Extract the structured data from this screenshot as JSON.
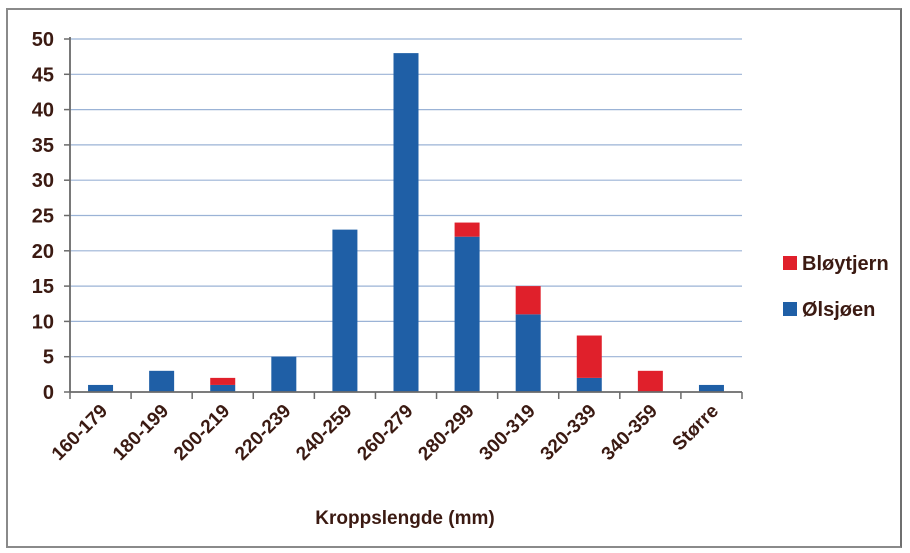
{
  "chart_data": {
    "type": "bar",
    "stacked": true,
    "title": "",
    "xlabel": "Kroppslengde (mm)",
    "ylabel": "",
    "ylim": [
      0,
      50
    ],
    "yticks": [
      0,
      5,
      10,
      15,
      20,
      25,
      30,
      35,
      40,
      45,
      50
    ],
    "grid": true,
    "legend_position": "right",
    "categories": [
      "160-179",
      "180-199",
      "200-219",
      "220-239",
      "240-259",
      "260-279",
      "280-299",
      "300-319",
      "320-339",
      "340-359",
      "Større"
    ],
    "series": [
      {
        "name": "Ølsjøen",
        "color": "#1f5fa6",
        "values": [
          1,
          3,
          1,
          5,
          23,
          48,
          22,
          11,
          2,
          0,
          1
        ]
      },
      {
        "name": "Bløytjern",
        "color": "#e0202b",
        "values": [
          0,
          0,
          1,
          0,
          0,
          0,
          2,
          4,
          6,
          3,
          0
        ]
      }
    ],
    "legend_order": [
      "Bløytjern",
      "Ølsjøen"
    ]
  }
}
